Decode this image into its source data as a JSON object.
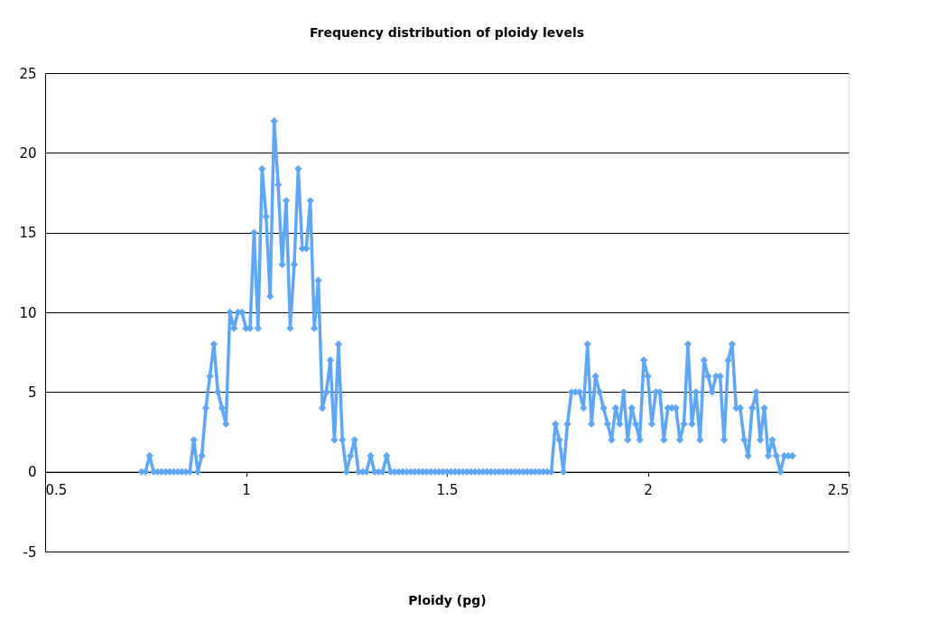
{
  "chart_data": {
    "type": "line",
    "title": "Frequency distribution of ploidy levels",
    "xlabel": "Ploidy (pg)",
    "x": [
      0.74,
      0.75,
      0.76,
      0.77,
      0.78,
      0.79,
      0.8,
      0.81,
      0.82,
      0.83,
      0.84,
      0.85,
      0.86,
      0.87,
      0.88,
      0.89,
      0.9,
      0.91,
      0.92,
      0.93,
      0.94,
      0.95,
      0.96,
      0.97,
      0.98,
      0.99,
      1.0,
      1.01,
      1.02,
      1.03,
      1.04,
      1.05,
      1.06,
      1.07,
      1.08,
      1.09,
      1.1,
      1.11,
      1.12,
      1.13,
      1.14,
      1.15,
      1.16,
      1.17,
      1.18,
      1.19,
      1.2,
      1.21,
      1.22,
      1.23,
      1.24,
      1.25,
      1.26,
      1.27,
      1.28,
      1.29,
      1.3,
      1.31,
      1.32,
      1.33,
      1.34,
      1.35,
      1.36,
      1.37,
      1.38,
      1.39,
      1.4,
      1.41,
      1.42,
      1.43,
      1.44,
      1.45,
      1.46,
      1.47,
      1.48,
      1.49,
      1.5,
      1.51,
      1.52,
      1.53,
      1.54,
      1.55,
      1.56,
      1.57,
      1.58,
      1.59,
      1.6,
      1.61,
      1.62,
      1.63,
      1.64,
      1.65,
      1.66,
      1.67,
      1.68,
      1.69,
      1.7,
      1.71,
      1.72,
      1.73,
      1.74,
      1.75,
      1.76,
      1.77,
      1.78,
      1.79,
      1.8,
      1.81,
      1.82,
      1.83,
      1.84,
      1.85,
      1.86,
      1.87,
      1.88,
      1.89,
      1.9,
      1.91,
      1.92,
      1.93,
      1.94,
      1.95,
      1.96,
      1.97,
      1.98,
      1.99,
      2.0,
      2.01,
      2.02,
      2.03,
      2.04,
      2.05,
      2.06,
      2.07,
      2.08,
      2.09,
      2.1,
      2.11,
      2.12,
      2.13,
      2.14,
      2.15,
      2.16,
      2.17,
      2.18,
      2.19,
      2.2,
      2.21,
      2.22,
      2.23,
      2.24,
      2.25,
      2.26,
      2.27,
      2.28,
      2.29,
      2.3,
      2.31,
      2.32,
      2.33,
      2.34,
      2.35,
      2.36
    ],
    "series": [
      {
        "color": "#5ea6f7",
        "values": [
          0,
          0,
          1,
          0,
          0,
          0,
          0,
          0,
          0,
          0,
          0,
          0,
          0,
          2,
          0,
          1,
          4,
          6,
          8,
          5,
          4,
          3,
          10,
          9,
          10,
          10,
          9,
          9,
          15,
          9,
          19,
          16,
          11,
          22,
          18,
          13,
          17,
          9,
          13,
          19,
          14,
          14,
          17,
          9,
          12,
          4,
          5,
          7,
          2,
          8,
          2,
          0,
          1,
          2,
          0,
          0,
          0,
          1,
          0,
          0,
          0,
          1,
          0,
          0,
          0,
          0,
          0,
          0,
          0,
          0,
          0,
          0,
          0,
          0,
          0,
          0,
          0,
          0,
          0,
          0,
          0,
          0,
          0,
          0,
          0,
          0,
          0,
          0,
          0,
          0,
          0,
          0,
          0,
          0,
          0,
          0,
          0,
          0,
          0,
          0,
          0,
          0,
          0,
          3,
          2,
          0,
          3,
          5,
          5,
          5,
          4,
          8,
          3,
          6,
          5,
          4,
          3,
          2,
          4,
          3,
          5,
          2,
          4,
          3,
          2,
          7,
          6,
          3,
          5,
          5,
          2,
          4,
          4,
          4,
          2,
          3,
          8,
          3,
          5,
          2,
          7,
          6,
          5,
          6,
          6,
          2,
          7,
          8,
          4,
          4,
          2,
          1,
          4,
          5,
          2,
          4,
          1,
          2,
          1,
          0,
          1,
          1,
          1
        ]
      }
    ],
    "xlim": [
      0.5,
      2.5
    ],
    "xticks": [
      0.5,
      1,
      1.5,
      2,
      2.5
    ],
    "ylim": [
      -5,
      25
    ],
    "yticks": [
      -5,
      0,
      5,
      10,
      15,
      20,
      25
    ],
    "grid": "y",
    "legend": false,
    "marker": "diamond",
    "line_style": "solid"
  }
}
